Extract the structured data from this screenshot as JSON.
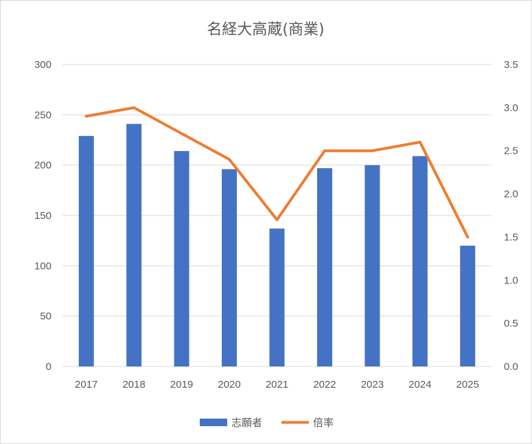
{
  "chart_data": {
    "type": "bar",
    "title": "名経大高蔵(商業)",
    "categories": [
      "2017",
      "2018",
      "2019",
      "2020",
      "2021",
      "2022",
      "2023",
      "2024",
      "2025"
    ],
    "series": [
      {
        "name": "志願者",
        "type": "bar",
        "axis": "left",
        "color": "#4472C4",
        "values": [
          229,
          241,
          214,
          196,
          137,
          197,
          200,
          209,
          120
        ]
      },
      {
        "name": "倍率",
        "type": "line",
        "axis": "right",
        "color": "#ED7D31",
        "values": [
          2.9,
          3.0,
          2.7,
          2.4,
          1.7,
          2.5,
          2.5,
          2.6,
          1.5
        ]
      }
    ],
    "y_left": {
      "min": 0,
      "max": 300,
      "step": 50,
      "ticks": [
        "0",
        "50",
        "100",
        "150",
        "200",
        "250",
        "300"
      ]
    },
    "y_right": {
      "min": 0,
      "max": 3.5,
      "step": 0.5,
      "ticks": [
        "0.0",
        "0.5",
        "1.0",
        "1.5",
        "2.0",
        "2.5",
        "3.0",
        "3.5"
      ]
    },
    "grid": true,
    "legend": "bottom"
  }
}
